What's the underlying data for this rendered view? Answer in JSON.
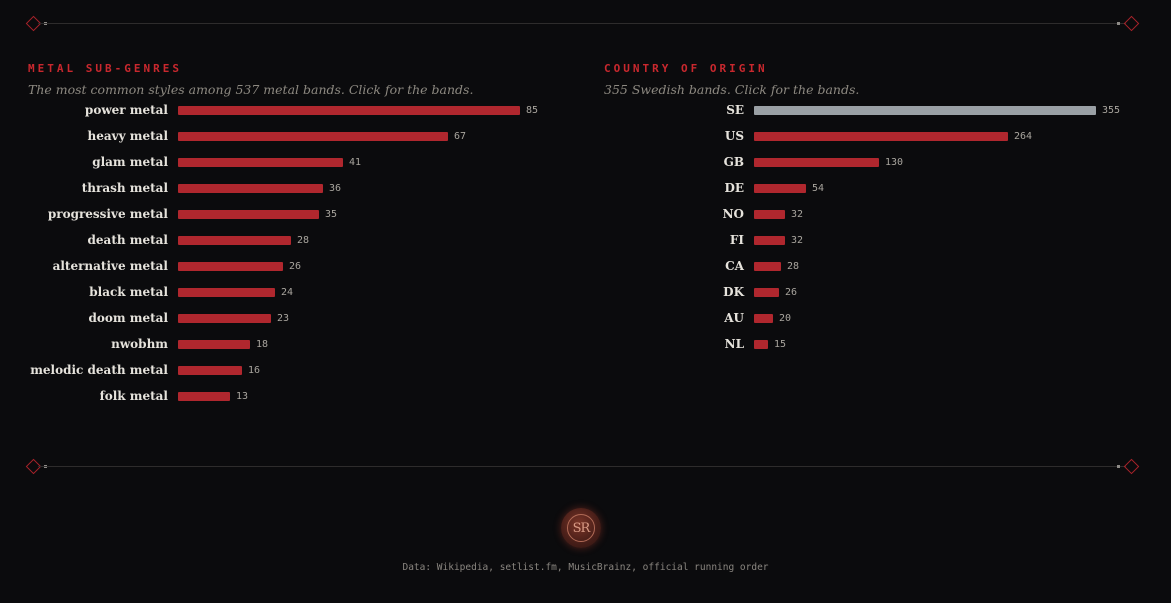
{
  "colors": {
    "background": "#0b0b0d",
    "accent": "#c9282e",
    "bar": "#b0272e",
    "bar_highlight": "#9aa0a5",
    "divider": "#2e2c2c"
  },
  "chart_data": [
    {
      "type": "bar",
      "orientation": "horizontal",
      "title": "METAL SUB-GENRES",
      "subtitle": "The most common styles among 537 metal bands. Click for the bands.",
      "categories": [
        "power metal",
        "heavy metal",
        "glam metal",
        "thrash metal",
        "progressive metal",
        "death metal",
        "alternative metal",
        "black metal",
        "doom metal",
        "nwobhm",
        "melodic death metal",
        "folk metal"
      ],
      "values": [
        85,
        67,
        41,
        36,
        35,
        28,
        26,
        24,
        23,
        18,
        16,
        13
      ],
      "xlim": [
        0,
        85
      ],
      "highlight": null
    },
    {
      "type": "bar",
      "orientation": "horizontal",
      "title": "COUNTRY OF ORIGIN",
      "subtitle": "355 Swedish bands. Click for the bands.",
      "categories": [
        "SE",
        "US",
        "GB",
        "DE",
        "NO",
        "FI",
        "CA",
        "DK",
        "AU",
        "NL"
      ],
      "values": [
        355,
        264,
        130,
        54,
        32,
        32,
        28,
        26,
        20,
        15
      ],
      "xlim": [
        0,
        355
      ],
      "highlight": "SE"
    }
  ],
  "footer": {
    "logo_text": "SR",
    "credits": "Data: Wikipedia, setlist.fm, MusicBrainz, official running order"
  }
}
